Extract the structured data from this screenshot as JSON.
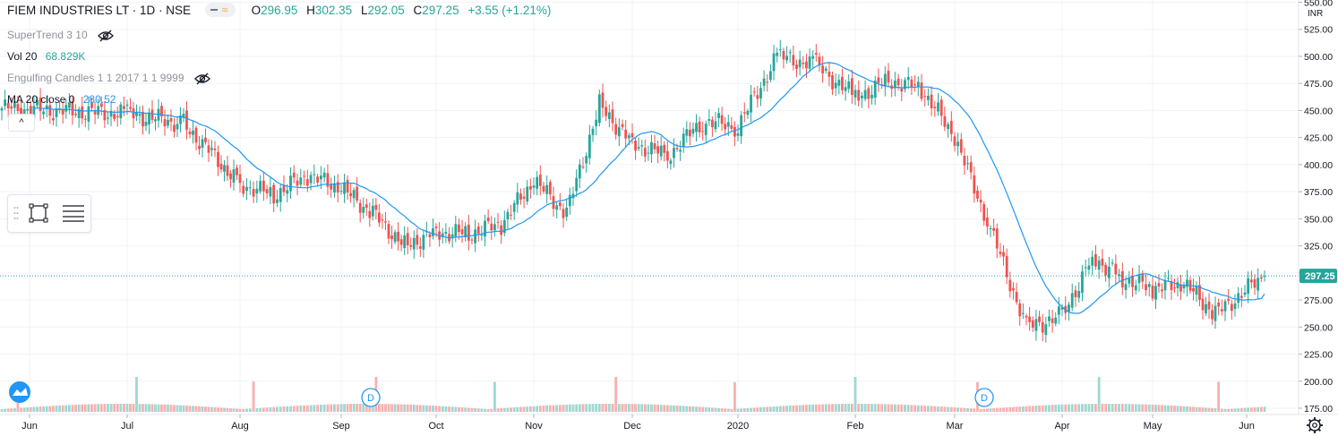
{
  "header": {
    "symbol_title": "FIEM INDUSTRIES LT · 1D · NSE",
    "ohlc": [
      {
        "label": "O",
        "value": "296.95"
      },
      {
        "label": "H",
        "value": "302.35"
      },
      {
        "label": "L",
        "value": "292.05"
      },
      {
        "label": "C",
        "value": "297.25"
      }
    ],
    "change": "+3.55 (+1.21%)"
  },
  "indicators": {
    "supertrend_label": "SuperTrend 3 10",
    "vol_label": "Vol 20",
    "vol_value": "68.829K",
    "engulfing_label": "Engulfing Candles 1 1 2017 1 1 9999",
    "ma_label": "MA 20 close 0",
    "ma_value": "280.52"
  },
  "price_axis": {
    "currency": "INR",
    "ticks": [
      "550.00",
      "525.00",
      "500.00",
      "475.00",
      "450.00",
      "425.00",
      "400.00",
      "375.00",
      "350.00",
      "325.00",
      "300.00",
      "275.00",
      "250.00",
      "225.00",
      "200.00",
      "175.00"
    ],
    "last_price_label": "297.25"
  },
  "time_axis": {
    "labels": [
      "Jun",
      "Jul",
      "Aug",
      "Sep",
      "Oct",
      "Nov",
      "Dec",
      "2020",
      "Feb",
      "Mar",
      "Apr",
      "May",
      "Jun"
    ]
  },
  "markers": [
    {
      "label": "D",
      "month": "Sep"
    },
    {
      "label": "D",
      "month": "Mar"
    }
  ],
  "colors": {
    "up": "#26a69a",
    "down": "#ef5350",
    "vol_up": "#9fd8d2",
    "vol_down": "#f7b1b0",
    "ma_line": "#2196f3",
    "grid": "#f0f3fa"
  },
  "chart_data": {
    "type": "candlestick",
    "symbol": "FIEM INDUSTRIES LT",
    "interval": "1D",
    "exchange": "NSE",
    "ylim": [
      175,
      550
    ],
    "month_labels": [
      "Jun",
      "Jul",
      "Aug",
      "Sep",
      "Oct",
      "Nov",
      "Dec",
      "2020",
      "Feb",
      "Mar",
      "Apr",
      "May",
      "Jun"
    ],
    "close_path": [
      {
        "month": "Jun",
        "close": 452
      },
      {
        "month": "Jul",
        "close": 447
      },
      {
        "month": "Jul",
        "close": 438
      },
      {
        "month": "Aug",
        "close": 382
      },
      {
        "month": "Aug",
        "close": 372
      },
      {
        "month": "Aug",
        "close": 390
      },
      {
        "month": "Sep",
        "close": 378
      },
      {
        "month": "Sep",
        "close": 355
      },
      {
        "month": "Sep",
        "close": 325
      },
      {
        "month": "Oct",
        "close": 338
      },
      {
        "month": "Oct",
        "close": 336
      },
      {
        "month": "Oct",
        "close": 345
      },
      {
        "month": "Nov",
        "close": 385
      },
      {
        "month": "Nov",
        "close": 355
      },
      {
        "month": "Nov",
        "close": 455
      },
      {
        "month": "Dec",
        "close": 420
      },
      {
        "month": "Dec",
        "close": 408
      },
      {
        "month": "Dec",
        "close": 440
      },
      {
        "month": "2020",
        "close": 435
      },
      {
        "month": "2020",
        "close": 500
      },
      {
        "month": "2020",
        "close": 492
      },
      {
        "month": "Feb",
        "close": 462
      },
      {
        "month": "Feb",
        "close": 478
      },
      {
        "month": "Feb",
        "close": 470
      },
      {
        "month": "Mar",
        "close": 425
      },
      {
        "month": "Mar",
        "close": 340
      },
      {
        "month": "Mar",
        "close": 250
      },
      {
        "month": "Apr",
        "close": 260
      },
      {
        "month": "Apr",
        "close": 315
      },
      {
        "month": "Apr",
        "close": 295
      },
      {
        "month": "May",
        "close": 285
      },
      {
        "month": "May",
        "close": 290
      },
      {
        "month": "May",
        "close": 262
      },
      {
        "month": "Jun",
        "close": 297.25
      }
    ],
    "last": {
      "open": 296.95,
      "high": 302.35,
      "low": 292.05,
      "close": 297.25,
      "change": 3.55,
      "change_pct": 1.21
    },
    "ma20_last": 280.52,
    "volume_last": "68.829K"
  }
}
